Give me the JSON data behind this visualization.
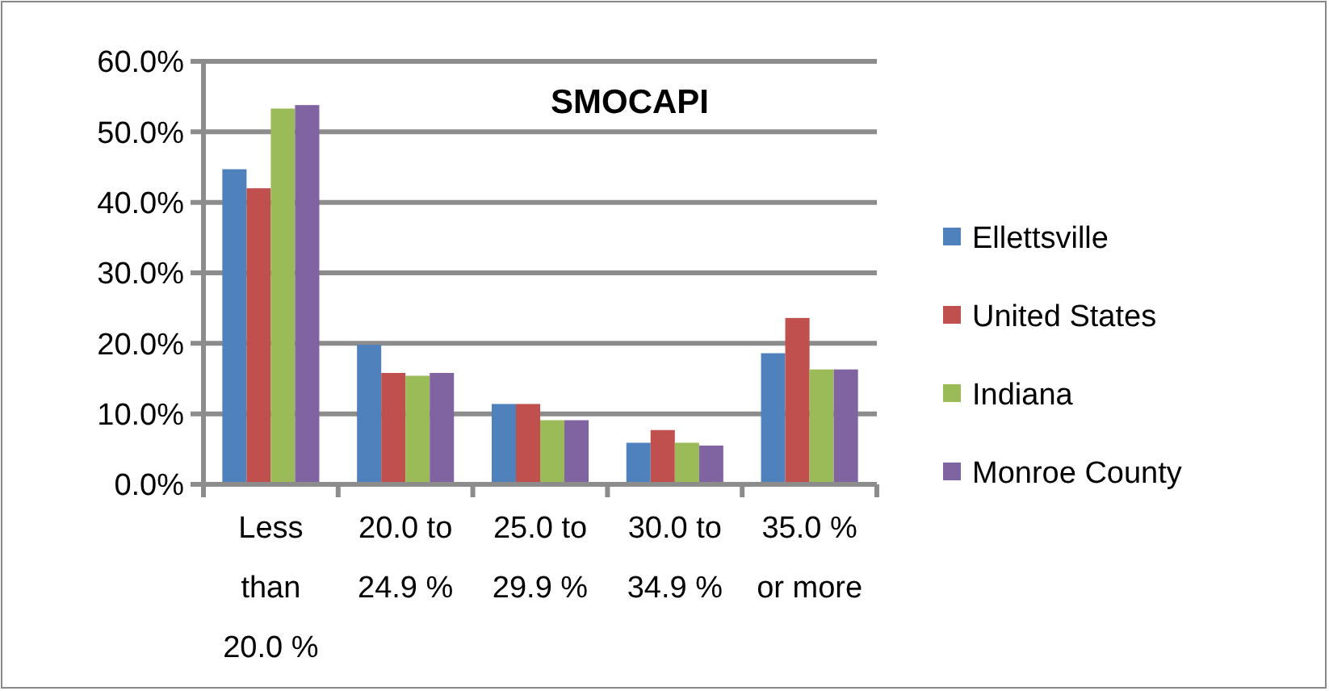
{
  "chart_data": {
    "type": "bar",
    "title": "SMOCAPI",
    "categories": [
      "Less than 20.0 %",
      "20.0 to 24.9 %",
      "25.0 to 29.9 %",
      "30.0 to 34.9 %",
      "35.0 % or more"
    ],
    "series": [
      {
        "name": "Ellettsville",
        "color": "#4f81bd",
        "values": [
          44.7,
          19.8,
          11.4,
          5.9,
          18.6
        ]
      },
      {
        "name": "United States",
        "color": "#c0504d",
        "values": [
          42.0,
          15.8,
          11.4,
          7.7,
          23.6
        ]
      },
      {
        "name": "Indiana",
        "color": "#9bbb59",
        "values": [
          53.3,
          15.4,
          9.1,
          5.9,
          16.3
        ]
      },
      {
        "name": "Monroe County",
        "color": "#8064a2",
        "values": [
          53.8,
          15.8,
          9.1,
          5.5,
          16.3
        ]
      }
    ],
    "ylim": [
      0,
      60
    ],
    "yticks": [
      {
        "value": 0,
        "label": "0.0%"
      },
      {
        "value": 10,
        "label": "10.0%"
      },
      {
        "value": 20,
        "label": "20.0%"
      },
      {
        "value": 30,
        "label": "30.0%"
      },
      {
        "value": 40,
        "label": "40.0%"
      },
      {
        "value": 50,
        "label": "50.0%"
      },
      {
        "value": 60,
        "label": "60.0%"
      }
    ],
    "grid": "y",
    "legend": "right"
  }
}
